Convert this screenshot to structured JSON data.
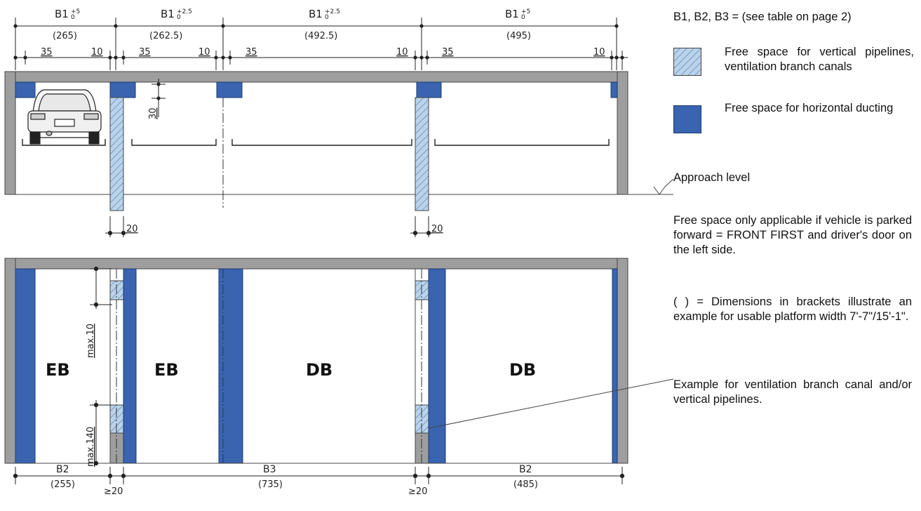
{
  "legend": {
    "header": "B1, B2, B3 = (see table on page 2)",
    "vertical_free_space": "Free space for vertical pipelines, ventilation branch canals",
    "horizontal_free_space": "Free space for horizontal ducting",
    "approach_level": "Approach level",
    "note_front_first": "Free space only applicable if vehicle is parked forward = FRONT FIRST and driver's door on the left side.",
    "note_brackets": "( ) = Dimensions in brackets illustrate an example for usable platform width 7'-7\"/15'-1\".",
    "callout_example": "Example for ventilation branch canal and/or vertical pipelines.",
    "colors": {
      "duct_blue": "#3a64b0",
      "hatch_blue": "#b9d3ea",
      "wall_gray": "#9e9e9e"
    }
  },
  "top_view": {
    "b1_labels": [
      {
        "base": "B1",
        "tol_up": "+5",
        "tol_down": "0",
        "example": "(265)"
      },
      {
        "base": "B1",
        "tol_up": "+2.5",
        "tol_down": "0",
        "example": "(262.5)"
      },
      {
        "base": "B1",
        "tol_up": "+2.5",
        "tol_down": "0",
        "example": "(492.5)"
      },
      {
        "base": "B1",
        "tol_up": "+5",
        "tol_down": "0",
        "example": "(495)"
      }
    ],
    "dim_35": "35",
    "dim_10": "10",
    "dim_30": "30",
    "dim_20": "20"
  },
  "plan_view": {
    "bays": [
      "EB",
      "EB",
      "DB",
      "DB"
    ],
    "max_10": "max.10",
    "max_140": "max.140",
    "b_labels": [
      {
        "text": "B2",
        "example": "(255)"
      },
      {
        "text": "B3",
        "example": "(735)"
      },
      {
        "text": "B2",
        "example": "(485)"
      }
    ],
    "gte_20": "≥20"
  }
}
